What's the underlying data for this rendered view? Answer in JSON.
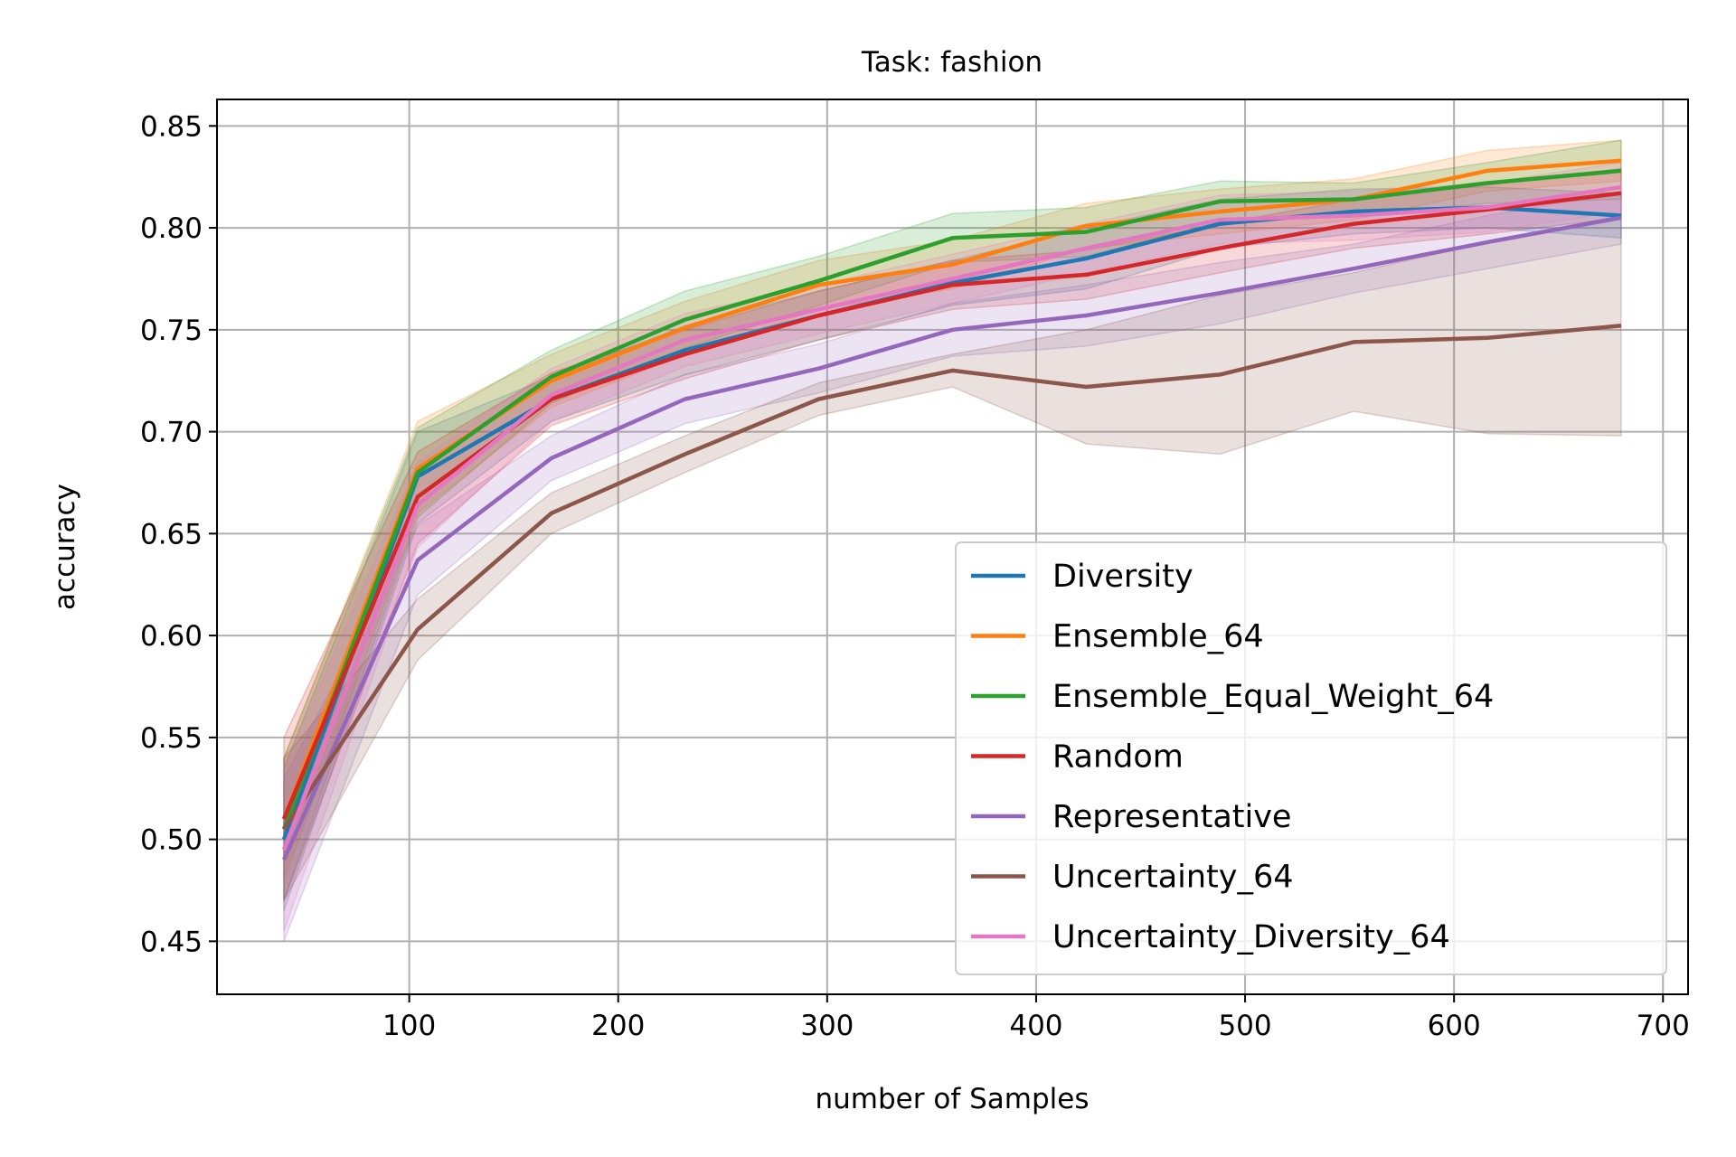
{
  "chart_data": {
    "type": "line",
    "title": "Task: fashion",
    "xlabel": "number of Samples",
    "ylabel": "accuracy",
    "xlim": [
      8,
      712
    ],
    "ylim": [
      0.424,
      0.863
    ],
    "xticks": [
      100,
      200,
      300,
      400,
      500,
      600,
      700
    ],
    "yticks": [
      0.45,
      0.5,
      0.55,
      0.6,
      0.65,
      0.7,
      0.75,
      0.8,
      0.85
    ],
    "grid": true,
    "legend_position": "lower right",
    "x": [
      40,
      104,
      168,
      232,
      296,
      360,
      424,
      488,
      552,
      616,
      680
    ],
    "series": [
      {
        "name": "Diversity",
        "color": "#1f77b4",
        "values": [
          0.5,
          0.678,
          0.716,
          0.74,
          0.757,
          0.773,
          0.785,
          0.802,
          0.808,
          0.81,
          0.806
        ],
        "lower": [
          0.465,
          0.655,
          0.705,
          0.728,
          0.745,
          0.762,
          0.77,
          0.79,
          0.797,
          0.8,
          0.795
        ],
        "upper": [
          0.535,
          0.7,
          0.727,
          0.752,
          0.769,
          0.784,
          0.8,
          0.814,
          0.819,
          0.82,
          0.817
        ]
      },
      {
        "name": "Ensemble_64",
        "color": "#ff7f0e",
        "values": [
          0.51,
          0.682,
          0.725,
          0.751,
          0.772,
          0.782,
          0.801,
          0.808,
          0.814,
          0.828,
          0.833
        ],
        "lower": [
          0.48,
          0.66,
          0.712,
          0.738,
          0.76,
          0.77,
          0.79,
          0.797,
          0.804,
          0.818,
          0.823
        ],
        "upper": [
          0.54,
          0.705,
          0.738,
          0.764,
          0.784,
          0.794,
          0.812,
          0.819,
          0.824,
          0.838,
          0.843
        ]
      },
      {
        "name": "Ensemble_Equal_Weight_64",
        "color": "#2ca02c",
        "values": [
          0.505,
          0.68,
          0.727,
          0.755,
          0.774,
          0.795,
          0.798,
          0.813,
          0.814,
          0.822,
          0.828
        ],
        "lower": [
          0.47,
          0.658,
          0.714,
          0.741,
          0.762,
          0.783,
          0.786,
          0.803,
          0.806,
          0.812,
          0.814
        ],
        "upper": [
          0.54,
          0.702,
          0.74,
          0.769,
          0.786,
          0.807,
          0.81,
          0.823,
          0.822,
          0.832,
          0.843
        ]
      },
      {
        "name": "Random",
        "color": "#d62728",
        "values": [
          0.51,
          0.668,
          0.716,
          0.738,
          0.757,
          0.772,
          0.777,
          0.79,
          0.802,
          0.809,
          0.817
        ],
        "lower": [
          0.47,
          0.645,
          0.703,
          0.726,
          0.745,
          0.76,
          0.765,
          0.778,
          0.79,
          0.797,
          0.805
        ],
        "upper": [
          0.55,
          0.69,
          0.729,
          0.75,
          0.769,
          0.784,
          0.789,
          0.802,
          0.814,
          0.821,
          0.829
        ]
      },
      {
        "name": "Representative",
        "color": "#9467bd",
        "values": [
          0.49,
          0.637,
          0.687,
          0.716,
          0.731,
          0.75,
          0.757,
          0.768,
          0.78,
          0.793,
          0.805
        ],
        "lower": [
          0.45,
          0.62,
          0.676,
          0.704,
          0.719,
          0.737,
          0.742,
          0.753,
          0.768,
          0.78,
          0.792
        ],
        "upper": [
          0.53,
          0.654,
          0.698,
          0.728,
          0.743,
          0.763,
          0.772,
          0.783,
          0.792,
          0.806,
          0.818
        ]
      },
      {
        "name": "Uncertainty_64",
        "color": "#8c564b",
        "values": [
          0.505,
          0.603,
          0.66,
          0.689,
          0.716,
          0.73,
          0.722,
          0.728,
          0.744,
          0.746,
          0.752
        ],
        "lower": [
          0.47,
          0.588,
          0.65,
          0.68,
          0.708,
          0.722,
          0.694,
          0.689,
          0.71,
          0.699,
          0.698
        ],
        "upper": [
          0.54,
          0.618,
          0.67,
          0.698,
          0.724,
          0.738,
          0.75,
          0.767,
          0.778,
          0.793,
          0.806
        ]
      },
      {
        "name": "Uncertainty_Diversity_64",
        "color": "#e377c2",
        "values": [
          0.495,
          0.664,
          0.718,
          0.745,
          0.76,
          0.775,
          0.79,
          0.804,
          0.806,
          0.81,
          0.82
        ],
        "lower": [
          0.455,
          0.643,
          0.705,
          0.732,
          0.748,
          0.763,
          0.778,
          0.792,
          0.794,
          0.798,
          0.808
        ],
        "upper": [
          0.535,
          0.685,
          0.731,
          0.758,
          0.772,
          0.787,
          0.802,
          0.816,
          0.818,
          0.822,
          0.832
        ]
      }
    ]
  }
}
